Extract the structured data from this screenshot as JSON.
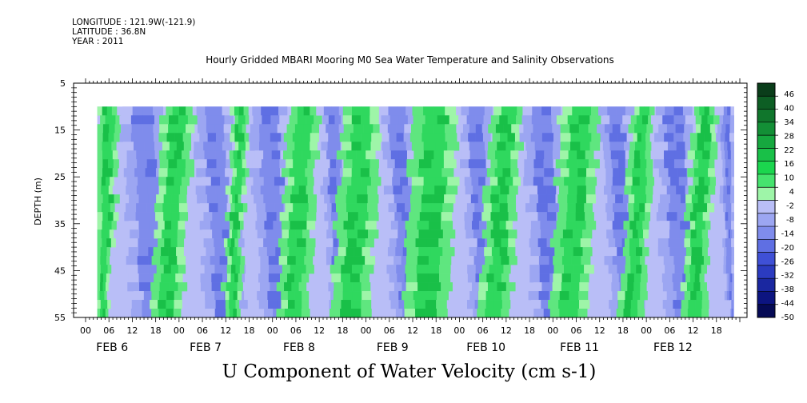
{
  "meta": {
    "longitude": "LONGITUDE : 121.9W(-121.9)",
    "latitude": "LATITUDE : 36.8N",
    "year": "YEAR : 2011"
  },
  "chart_data": {
    "type": "heatmap",
    "title": "Hourly Gridded MBARI Mooring M0 Sea Water Temperature and Salinity Observations",
    "bottom_title": "U Component of Water Velocity (cm s-1)",
    "ylabel": "DEPTH (m)",
    "ylim": [
      55,
      5
    ],
    "yticks": [
      "5",
      "15",
      "25",
      "35",
      "45",
      "55"
    ],
    "xtick_hours": [
      "00",
      "06",
      "12",
      "18",
      "00",
      "06",
      "12",
      "18",
      "00",
      "06",
      "12",
      "18",
      "00",
      "06",
      "12",
      "18",
      "00",
      "06",
      "12",
      "18",
      "00",
      "06",
      "12",
      "18",
      "00",
      "06",
      "12",
      "18"
    ],
    "xdays": [
      "FEB  6",
      "FEB  7",
      "FEB  8",
      "FEB  9",
      "FEB 10",
      "FEB 11",
      "FEB 12"
    ],
    "data_start": "FEB 6 03h",
    "data_end": "FEB 12 22h",
    "data_depth_top": 10,
    "colorbar": {
      "labels": [
        "46",
        "40",
        "34",
        "28",
        "22",
        "16",
        "10",
        "4",
        "-2",
        "-8",
        "-14",
        "-20",
        "-26",
        "-32",
        "-38",
        "-44",
        "-50"
      ],
      "colors": [
        "#0a3d1a",
        "#0d5e24",
        "#10762c",
        "#138f36",
        "#16a83f",
        "#19c048",
        "#1bd64e",
        "#46e36e",
        "#9ef5a8",
        "#b9bef7",
        "#9ca6f2",
        "#7f8cec",
        "#5f6fe3",
        "#3f50d6",
        "#2b3bc0",
        "#1a27a0",
        "#0c1480",
        "#050a55"
      ]
    },
    "velocity_bands": [
      {
        "start_hour": 3,
        "end_hour": 9,
        "sign": "pos"
      },
      {
        "start_hour": 9,
        "end_hour": 20,
        "sign": "neg"
      },
      {
        "start_hour": 20,
        "end_hour": 28,
        "sign": "pos"
      },
      {
        "start_hour": 28,
        "end_hour": 38,
        "sign": "neg"
      },
      {
        "start_hour": 38,
        "end_hour": 42,
        "sign": "pos"
      },
      {
        "start_hour": 42,
        "end_hour": 52,
        "sign": "neg"
      },
      {
        "start_hour": 52,
        "end_hour": 60,
        "sign": "pos"
      },
      {
        "start_hour": 60,
        "end_hour": 66,
        "sign": "neg"
      },
      {
        "start_hour": 66,
        "end_hour": 76,
        "sign": "pos"
      },
      {
        "start_hour": 76,
        "end_hour": 84,
        "sign": "neg"
      },
      {
        "start_hour": 84,
        "end_hour": 96,
        "sign": "pos"
      },
      {
        "start_hour": 96,
        "end_hour": 104,
        "sign": "neg"
      },
      {
        "start_hour": 104,
        "end_hour": 112,
        "sign": "pos"
      },
      {
        "start_hour": 112,
        "end_hour": 122,
        "sign": "neg"
      },
      {
        "start_hour": 122,
        "end_hour": 132,
        "sign": "pos"
      },
      {
        "start_hour": 132,
        "end_hour": 140,
        "sign": "neg"
      },
      {
        "start_hour": 140,
        "end_hour": 146,
        "sign": "pos"
      },
      {
        "start_hour": 146,
        "end_hour": 156,
        "sign": "neg"
      },
      {
        "start_hour": 156,
        "end_hour": 162,
        "sign": "pos"
      },
      {
        "start_hour": 162,
        "end_hour": 168,
        "sign": "neg"
      }
    ]
  }
}
